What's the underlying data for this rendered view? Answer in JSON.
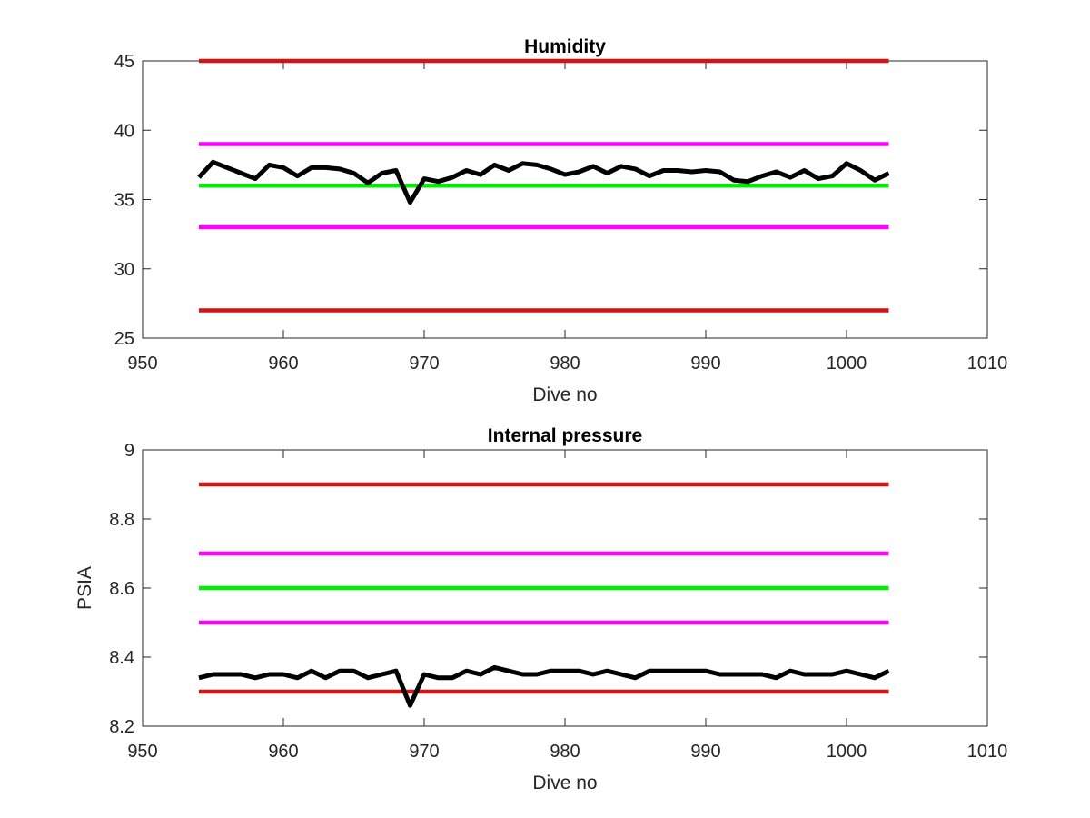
{
  "chart_data": [
    {
      "type": "line",
      "title": "Humidity",
      "xlabel": "Dive no",
      "ylabel": "",
      "xlim": [
        950,
        1010
      ],
      "ylim": [
        25,
        45
      ],
      "xticks": [
        950,
        960,
        970,
        980,
        990,
        1000,
        1010
      ],
      "yticks": [
        25,
        30,
        35,
        40,
        45
      ],
      "grid": false,
      "legend": "none",
      "series": [
        {
          "color": "#000000",
          "x": [
            954,
            955,
            956,
            957,
            958,
            959,
            960,
            961,
            962,
            963,
            964,
            965,
            966,
            967,
            968,
            969,
            970,
            971,
            972,
            973,
            974,
            975,
            976,
            977,
            978,
            979,
            980,
            981,
            982,
            983,
            984,
            985,
            986,
            987,
            988,
            989,
            990,
            991,
            992,
            993,
            994,
            995,
            996,
            997,
            998,
            999,
            1000,
            1001,
            1002,
            1003
          ],
          "y": [
            36.6,
            37.7,
            37.3,
            36.9,
            36.5,
            37.5,
            37.3,
            36.7,
            37.3,
            37.3,
            37.2,
            36.9,
            36.2,
            36.9,
            37.1,
            34.8,
            36.5,
            36.3,
            36.6,
            37.1,
            36.8,
            37.5,
            37.1,
            37.6,
            37.5,
            37.2,
            36.8,
            37.0,
            37.4,
            36.9,
            37.4,
            37.2,
            36.7,
            37.1,
            37.1,
            37.0,
            37.1,
            37.0,
            36.4,
            36.3,
            36.7,
            37.0,
            36.6,
            37.1,
            36.5,
            36.7,
            37.6,
            37.1,
            36.4,
            36.9
          ]
        },
        {
          "color": "#d21414",
          "x": [
            954,
            1003
          ],
          "y": [
            45,
            45
          ]
        },
        {
          "color": "#ff00ff",
          "x": [
            954,
            1003
          ],
          "y": [
            39,
            39
          ]
        },
        {
          "color": "#00ee00",
          "x": [
            954,
            1003
          ],
          "y": [
            36,
            36
          ]
        },
        {
          "color": "#ff00ff",
          "x": [
            954,
            1003
          ],
          "y": [
            33,
            33
          ]
        },
        {
          "color": "#d21414",
          "x": [
            954,
            1003
          ],
          "y": [
            27,
            27
          ]
        }
      ]
    },
    {
      "type": "line",
      "title": "Internal pressure",
      "xlabel": "Dive no",
      "ylabel": "PSIA",
      "xlim": [
        950,
        1010
      ],
      "ylim": [
        8.2,
        9
      ],
      "xticks": [
        950,
        960,
        970,
        980,
        990,
        1000,
        1010
      ],
      "yticks": [
        8.2,
        8.4,
        8.6,
        8.8,
        9
      ],
      "grid": false,
      "legend": "none",
      "series": [
        {
          "color": "#000000",
          "x": [
            954,
            955,
            956,
            957,
            958,
            959,
            960,
            961,
            962,
            963,
            964,
            965,
            966,
            967,
            968,
            969,
            970,
            971,
            972,
            973,
            974,
            975,
            976,
            977,
            978,
            979,
            980,
            981,
            982,
            983,
            984,
            985,
            986,
            987,
            988,
            989,
            990,
            991,
            992,
            993,
            994,
            995,
            996,
            997,
            998,
            999,
            1000,
            1001,
            1002,
            1003
          ],
          "y": [
            8.34,
            8.35,
            8.35,
            8.35,
            8.34,
            8.35,
            8.35,
            8.34,
            8.36,
            8.34,
            8.36,
            8.36,
            8.34,
            8.35,
            8.36,
            8.26,
            8.35,
            8.34,
            8.34,
            8.36,
            8.35,
            8.37,
            8.36,
            8.35,
            8.35,
            8.36,
            8.36,
            8.36,
            8.35,
            8.36,
            8.35,
            8.34,
            8.36,
            8.36,
            8.36,
            8.36,
            8.36,
            8.35,
            8.35,
            8.35,
            8.35,
            8.34,
            8.36,
            8.35,
            8.35,
            8.35,
            8.36,
            8.35,
            8.34,
            8.36
          ]
        },
        {
          "color": "#d21414",
          "x": [
            954,
            1003
          ],
          "y": [
            8.9,
            8.9
          ]
        },
        {
          "color": "#ff00ff",
          "x": [
            954,
            1003
          ],
          "y": [
            8.7,
            8.7
          ]
        },
        {
          "color": "#00ee00",
          "x": [
            954,
            1003
          ],
          "y": [
            8.6,
            8.6
          ]
        },
        {
          "color": "#ff00ff",
          "x": [
            954,
            1003
          ],
          "y": [
            8.5,
            8.5
          ]
        },
        {
          "color": "#d21414",
          "x": [
            954,
            1003
          ],
          "y": [
            8.3,
            8.3
          ]
        }
      ]
    }
  ]
}
